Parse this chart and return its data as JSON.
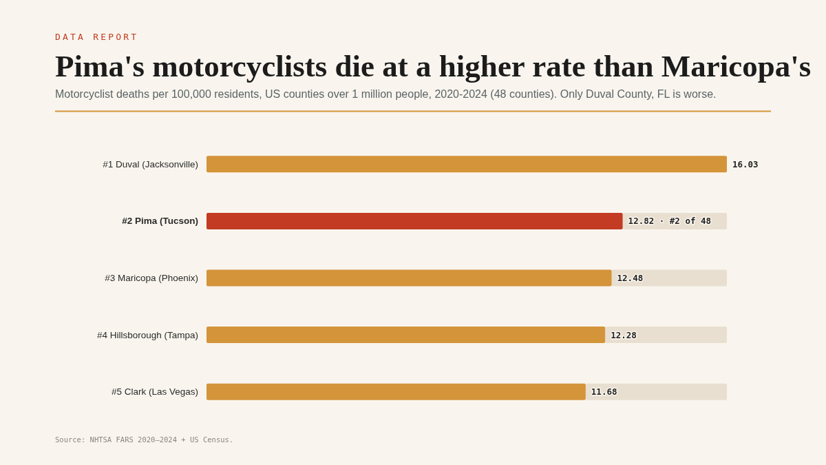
{
  "chart_data": {
    "type": "bar",
    "orientation": "horizontal",
    "title": "Pima's motorcyclists die at a higher rate than Maricopa's",
    "subtitle": "Motorcyclist deaths per 100,000 residents, US counties over 1 million people, 2020-2024 (48 counties). Only Duval County, FL is worse.",
    "annotations": [
      "DATA REPORT",
      "Source: NHTSA FARS 2020–2024 + US Census."
    ],
    "categories": [
      "#1 Duval (Jacksonville)",
      "#2 Pima (Tucson)",
      "#3 Maricopa (Phoenix)",
      "#4 Hillsborough (Tampa)",
      "#5 Clark (Las Vegas)"
    ],
    "values": [
      16.03,
      12.82,
      12.48,
      12.28,
      11.68
    ],
    "colors": [
      "#d4943a",
      "#c23b22",
      "#d4943a",
      "#d4943a",
      "#d4943a"
    ],
    "value_labels": [
      "16.03",
      "12.82 · #2 of 48",
      "12.48",
      "12.28",
      "11.68"
    ],
    "xlim": [
      0,
      16.03
    ],
    "tick_labels": "y"
  }
}
